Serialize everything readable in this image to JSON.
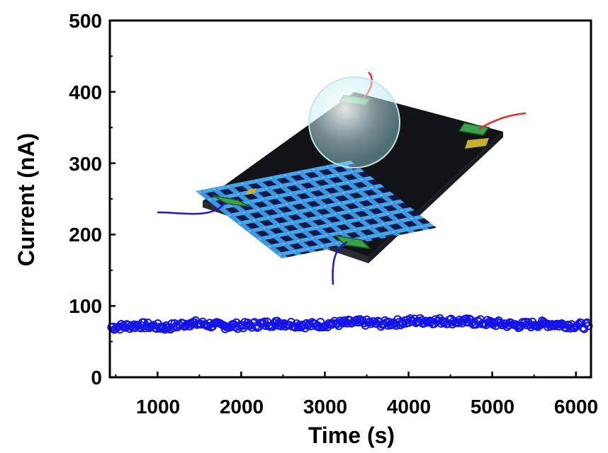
{
  "chart_data": {
    "type": "scatter",
    "title": "",
    "xlabel": "Time (s)",
    "ylabel": "Current (nA)",
    "xlim": [
      430,
      6180
    ],
    "ylim": [
      0,
      500
    ],
    "x_ticks": [
      1000,
      2000,
      3000,
      4000,
      5000,
      6000
    ],
    "y_ticks": [
      0,
      100,
      200,
      300,
      400,
      500
    ],
    "x_tick_labels": [
      "1000",
      "2000",
      "3000",
      "4000",
      "5000",
      "6000"
    ],
    "y_tick_labels": [
      "0",
      "100",
      "200",
      "300",
      "400",
      "500"
    ],
    "grid": false,
    "legend": "none",
    "series": [
      {
        "color": "#1414e6",
        "x": [
          450,
          800,
          1100,
          1400,
          1800,
          2100,
          2450,
          2800,
          3100,
          3400,
          3700,
          4050,
          4400,
          4700,
          5000,
          5300,
          5600,
          5800,
          6150
        ],
        "y": [
          70,
          73,
          70,
          76,
          72,
          73,
          76,
          73,
          75,
          77,
          75,
          79,
          79,
          78,
          76,
          73,
          75,
          74,
          72
        ]
      }
    ],
    "inset": "device-schematic"
  }
}
